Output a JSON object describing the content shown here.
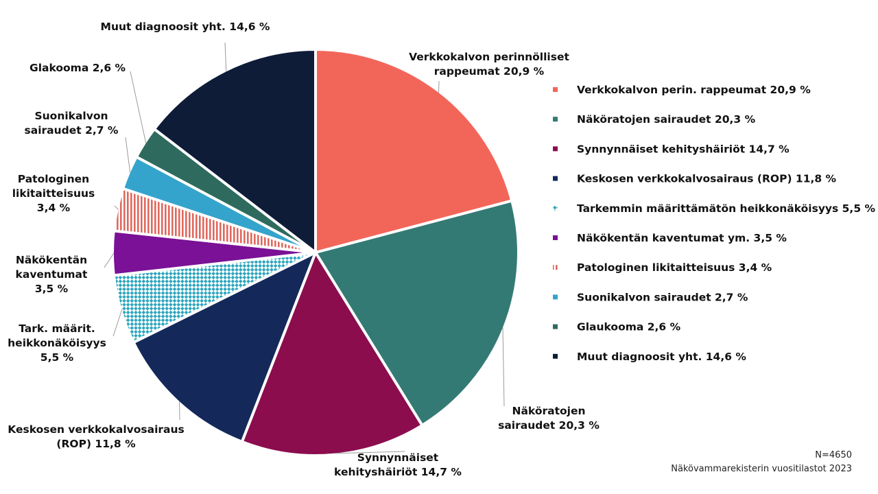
{
  "chart_data": {
    "type": "pie",
    "slices": [
      {
        "name": "Verkkokalvon perinnölliset rappeumat",
        "value": 20.9,
        "color": "#F2665A",
        "pattern": "solid",
        "label_lines": [
          "Verkkokalvon perinnölliset",
          "rappeumat 20,9 %"
        ],
        "legend": "Verkkokalvon perin. rappeumat 20,9 %"
      },
      {
        "name": "Näköratojen sairaudet",
        "value": 20.3,
        "color": "#347A74",
        "pattern": "solid",
        "label_lines": [
          "Näköratojen",
          "sairaudet 20,3 %"
        ],
        "legend": " Näköratojen sairaudet 20,3 %"
      },
      {
        "name": "Synnynnäiset kehityshäiriöt",
        "value": 14.7,
        "color": "#8B0D4E",
        "pattern": "solid",
        "label_lines": [
          "Synnynnäiset",
          "kehityshäiriöt 14,7 %"
        ],
        "legend": "Synnynnäiset kehityshäiriöt 14,7 %"
      },
      {
        "name": "Keskosen verkkokalvosairaus (ROP)",
        "value": 11.8,
        "color": "#14295A",
        "pattern": "solid",
        "label_lines": [
          "Keskosen verkkokalvosairaus",
          "(ROP) 11,8 %"
        ],
        "legend": "Keskosen verkkokalvosairaus (ROP) 11,8 %"
      },
      {
        "name": "Tarkemmin määrittämätön heikkonäköisyys",
        "value": 5.5,
        "color": "#2EA6BD",
        "pattern": "checker",
        "label_lines": [
          "Tark. määrit.",
          "heikkonäköisyys",
          "5,5 %"
        ],
        "legend": "Tarkemmin määrittämätön heikkonäköisyys 5,5 %"
      },
      {
        "name": "Näkökentän kaventumat ym.",
        "value": 3.5,
        "color": "#7A1196",
        "pattern": "solid",
        "label_lines": [
          "Näkökentän",
          "kaventumat",
          "3,5 %"
        ],
        "legend": "Näkökentän kaventumat ym. 3,5 %"
      },
      {
        "name": "Patologinen likitaitteisuus",
        "value": 3.4,
        "color": "#E0685E",
        "pattern": "stripes",
        "label_lines": [
          "Patologinen",
          "likitaitteisuus",
          "3,4 %"
        ],
        "legend": "Patologinen likitaitteisuus 3,4 %"
      },
      {
        "name": "Suonikalvon sairaudet",
        "value": 2.7,
        "color": "#35A4CC",
        "pattern": "solid",
        "label_lines": [
          "Suonikalvon",
          "sairaudet 2,7 %"
        ],
        "legend": "Suonikalvon sairaudet 2,7 %"
      },
      {
        "name": "Glaukooma",
        "value": 2.6,
        "color": "#2E6B5E",
        "pattern": "solid",
        "label_lines": [
          "Glakooma 2,6 %"
        ],
        "legend": "Glaukooma 2,6 %"
      },
      {
        "name": "Muut diagnoosit yht.",
        "value": 14.6,
        "color": "#0E1C38",
        "pattern": "solid",
        "label_lines": [
          "Muut diagnoosit yht. 14,6 %"
        ],
        "legend": "Muut diagnoosit yht. 14,6 %"
      }
    ],
    "legend_position": "right"
  },
  "footer": {
    "n": "N=4650",
    "source": "Näkövammarekisterin vuositilastot 2023"
  }
}
